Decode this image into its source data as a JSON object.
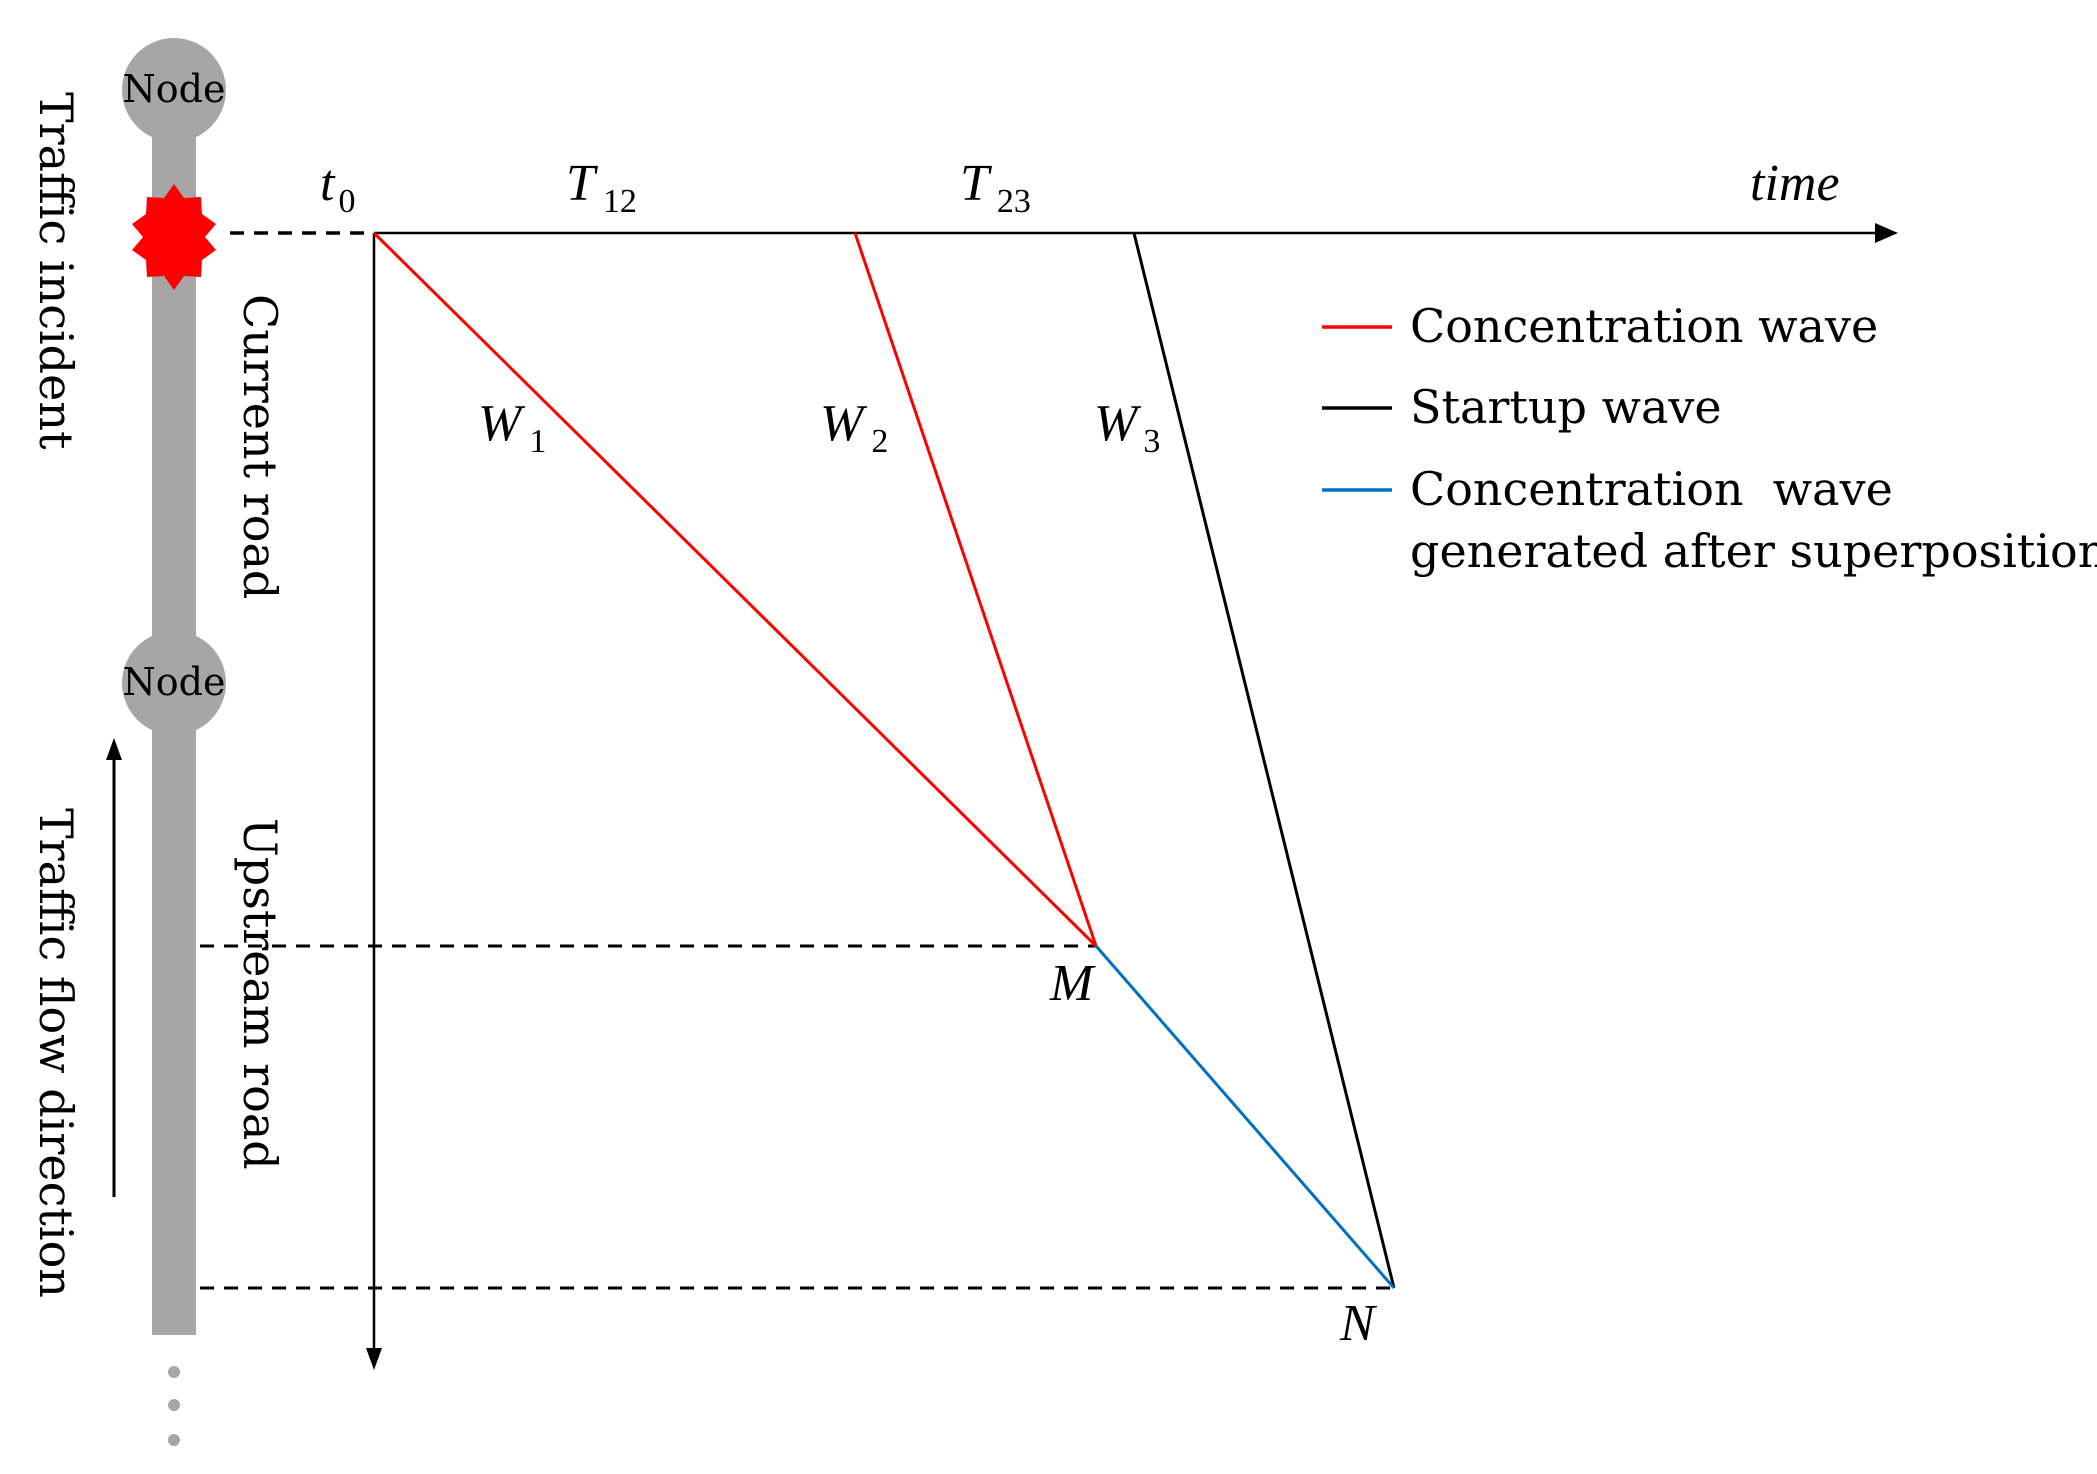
{
  "nodes": [
    {
      "label": "Node"
    },
    {
      "label": "Node"
    }
  ],
  "side_labels": {
    "incident": "Traffic incident",
    "flow_direction": "Traffic flow direction",
    "current_road": "Current road",
    "upstream_road": "Upstream road"
  },
  "axis": {
    "time_label": "time",
    "t0": {
      "main": "t",
      "sub": "0"
    },
    "t12": {
      "main": "T",
      "sub": "12"
    },
    "t23": {
      "main": "T",
      "sub": "23"
    }
  },
  "waves": {
    "w1": {
      "main": "W",
      "sub": "1"
    },
    "w2": {
      "main": "W",
      "sub": "2"
    },
    "w3": {
      "main": "W",
      "sub": "3"
    }
  },
  "points": {
    "m": "M",
    "n": "N"
  },
  "legend": [
    {
      "label": "Concentration wave",
      "color": "#ff0000"
    },
    {
      "label": "Startup wave",
      "color": "#000000"
    },
    {
      "label": "Concentration  wave",
      "label2": "generated after superposition",
      "color": "#0070c0"
    }
  ],
  "colors": {
    "road": "#a6a6a6",
    "incident": "#ff0000",
    "concentration_wave": "#ff0000",
    "startup_wave": "#000000",
    "superposition_wave": "#0070c0"
  }
}
